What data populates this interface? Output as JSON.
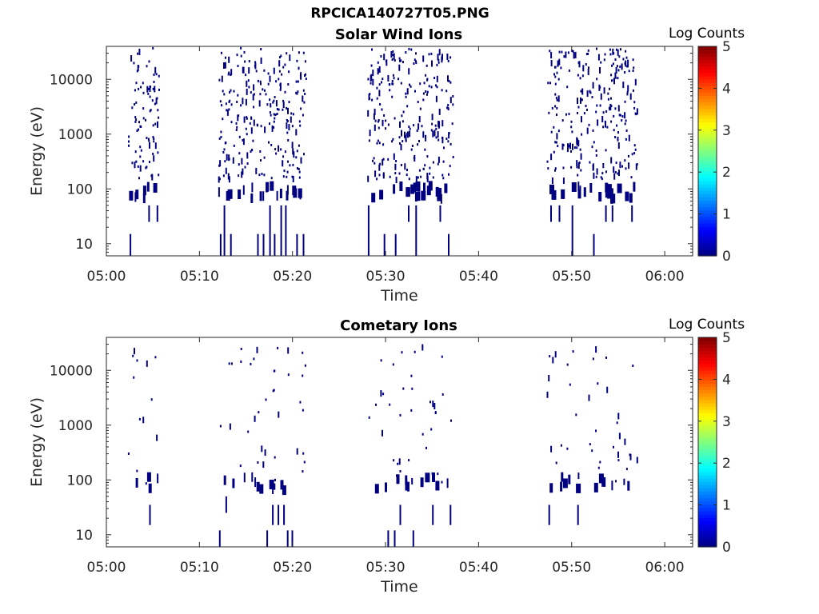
{
  "figure_title": "RPCICA140727T05.PNG",
  "chart_data": [
    {
      "type": "heatmap",
      "title": "Solar Wind Ions",
      "xlabel": "Time",
      "ylabel": "Energy (eV)",
      "x_ticks": [
        "05:00",
        "05:10",
        "05:20",
        "05:30",
        "05:40",
        "05:50",
        "06:00"
      ],
      "xlim": [
        "05:00",
        "06:03"
      ],
      "y_scale": "log",
      "y_ticks": [
        "10",
        "100",
        "1000",
        "10000"
      ],
      "ylim": [
        6,
        40000
      ],
      "colorbar": {
        "label": "Log Counts",
        "min": 0,
        "max": 5,
        "ticks": [
          "0",
          "1",
          "2",
          "3",
          "4",
          "5"
        ],
        "colormap": "jet"
      },
      "observed_value": 0,
      "activity_intervals_min": [
        [
          2.3,
          5.6
        ],
        [
          12.0,
          21.4
        ],
        [
          28.0,
          37.2
        ],
        [
          47.3,
          57.0
        ]
      ],
      "low_energy_lines": [
        {
          "t": 2.5,
          "e_lo": 6,
          "e_hi": 15
        },
        {
          "t": 4.5,
          "e_lo": 25,
          "e_hi": 50
        },
        {
          "t": 5.4,
          "e_lo": 25,
          "e_hi": 50
        },
        {
          "t": 12.2,
          "e_lo": 6,
          "e_hi": 15
        },
        {
          "t": 12.6,
          "e_lo": 6,
          "e_hi": 50
        },
        {
          "t": 13.3,
          "e_lo": 6,
          "e_hi": 15
        },
        {
          "t": 16.2,
          "e_lo": 6,
          "e_hi": 15
        },
        {
          "t": 16.8,
          "e_lo": 6,
          "e_hi": 15
        },
        {
          "t": 17.5,
          "e_lo": 6,
          "e_hi": 50
        },
        {
          "t": 18.0,
          "e_lo": 6,
          "e_hi": 15
        },
        {
          "t": 18.7,
          "e_lo": 6,
          "e_hi": 50
        },
        {
          "t": 19.2,
          "e_lo": 6,
          "e_hi": 50
        },
        {
          "t": 20.4,
          "e_lo": 6,
          "e_hi": 15
        },
        {
          "t": 21.1,
          "e_lo": 6,
          "e_hi": 15
        },
        {
          "t": 28.1,
          "e_lo": 6,
          "e_hi": 50
        },
        {
          "t": 29.8,
          "e_lo": 6,
          "e_hi": 15
        },
        {
          "t": 31.0,
          "e_lo": 6,
          "e_hi": 15
        },
        {
          "t": 32.4,
          "e_lo": 25,
          "e_hi": 50
        },
        {
          "t": 33.2,
          "e_lo": 6,
          "e_hi": 50
        },
        {
          "t": 35.8,
          "e_lo": 25,
          "e_hi": 50
        },
        {
          "t": 36.7,
          "e_lo": 6,
          "e_hi": 15
        },
        {
          "t": 47.7,
          "e_lo": 25,
          "e_hi": 50
        },
        {
          "t": 48.6,
          "e_lo": 25,
          "e_hi": 50
        },
        {
          "t": 50.0,
          "e_lo": 6,
          "e_hi": 50
        },
        {
          "t": 52.3,
          "e_lo": 6,
          "e_hi": 15
        },
        {
          "t": 53.6,
          "e_lo": 25,
          "e_hi": 50
        },
        {
          "t": 54.3,
          "e_lo": 25,
          "e_hi": 50
        },
        {
          "t": 56.4,
          "e_lo": 25,
          "e_hi": 50
        }
      ]
    },
    {
      "type": "heatmap",
      "title": "Cometary Ions",
      "xlabel": "Time",
      "ylabel": "Energy (eV)",
      "x_ticks": [
        "05:00",
        "05:10",
        "05:20",
        "05:30",
        "05:40",
        "05:50",
        "06:00"
      ],
      "xlim": [
        "05:00",
        "06:03"
      ],
      "y_scale": "log",
      "y_ticks": [
        "10",
        "100",
        "1000",
        "10000"
      ],
      "ylim": [
        6,
        40000
      ],
      "colorbar": {
        "label": "Log Counts",
        "min": 0,
        "max": 5,
        "ticks": [
          "0",
          "1",
          "2",
          "3",
          "4",
          "5"
        ],
        "colormap": "jet"
      },
      "observed_value": 0,
      "activity_intervals_min": [
        [
          2.3,
          5.6
        ],
        [
          12.0,
          21.4
        ],
        [
          28.0,
          37.2
        ],
        [
          47.3,
          57.0
        ]
      ],
      "low_energy_lines": [
        {
          "t": 4.6,
          "e_lo": 15,
          "e_hi": 35
        },
        {
          "t": 12.1,
          "e_lo": 6,
          "e_hi": 12
        },
        {
          "t": 12.8,
          "e_lo": 25,
          "e_hi": 50
        },
        {
          "t": 17.2,
          "e_lo": 6,
          "e_hi": 12
        },
        {
          "t": 17.8,
          "e_lo": 15,
          "e_hi": 35
        },
        {
          "t": 18.4,
          "e_lo": 15,
          "e_hi": 35
        },
        {
          "t": 19.0,
          "e_lo": 15,
          "e_hi": 35
        },
        {
          "t": 19.4,
          "e_lo": 6,
          "e_hi": 12
        },
        {
          "t": 19.9,
          "e_lo": 6,
          "e_hi": 12
        },
        {
          "t": 30.2,
          "e_lo": 6,
          "e_hi": 12
        },
        {
          "t": 30.9,
          "e_lo": 6,
          "e_hi": 12
        },
        {
          "t": 31.5,
          "e_lo": 15,
          "e_hi": 35
        },
        {
          "t": 32.9,
          "e_lo": 6,
          "e_hi": 12
        },
        {
          "t": 35.0,
          "e_lo": 15,
          "e_hi": 35
        },
        {
          "t": 36.9,
          "e_lo": 15,
          "e_hi": 35
        },
        {
          "t": 47.5,
          "e_lo": 15,
          "e_hi": 35
        },
        {
          "t": 50.6,
          "e_lo": 15,
          "e_hi": 35
        }
      ]
    }
  ]
}
